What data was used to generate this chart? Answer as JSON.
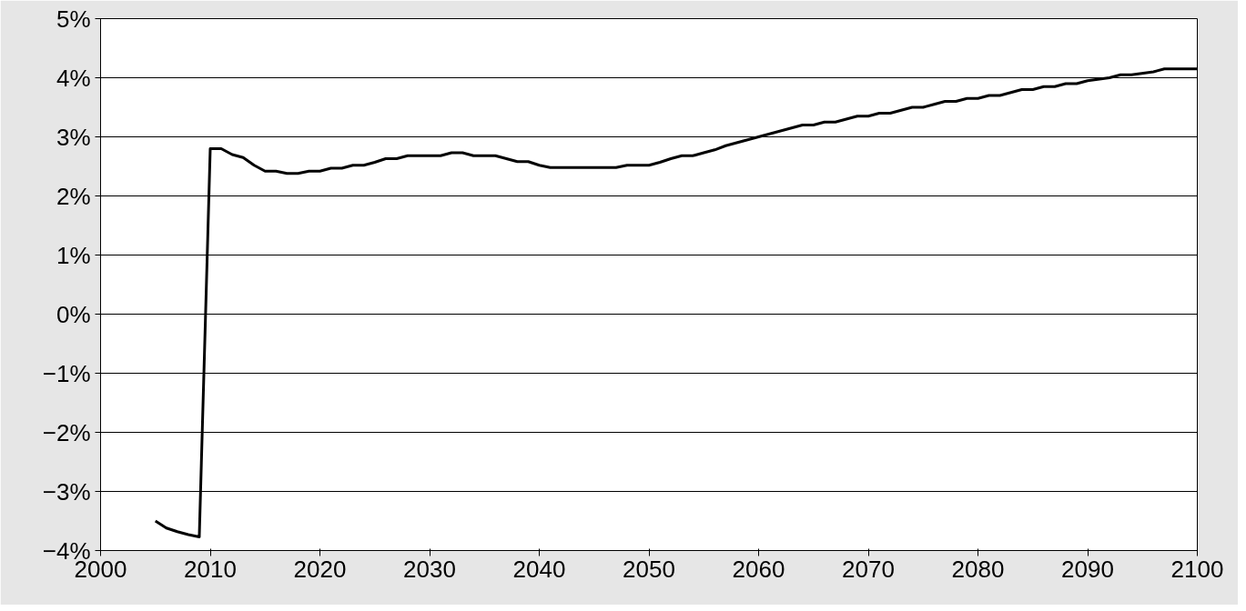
{
  "chart_data": {
    "type": "line",
    "xlim": [
      2000,
      2100
    ],
    "xticks": [
      2000,
      2010,
      2020,
      2030,
      2040,
      2050,
      2060,
      2070,
      2080,
      2090,
      2100
    ],
    "ylim": [
      -4,
      5
    ],
    "yticks": [
      {
        "value": -4,
        "label": "−4%"
      },
      {
        "value": -3,
        "label": "−3%"
      },
      {
        "value": -2,
        "label": "−2%"
      },
      {
        "value": -1,
        "label": "−1%"
      },
      {
        "value": 0,
        "label": "0%"
      },
      {
        "value": 1,
        "label": "1%"
      },
      {
        "value": 2,
        "label": "2%"
      },
      {
        "value": 3,
        "label": "3%"
      },
      {
        "value": 4,
        "label": "4%"
      },
      {
        "value": 5,
        "label": "5%"
      }
    ],
    "grid": "y",
    "marker": "none",
    "line_style": "solid",
    "series": [
      {
        "color": "#000000",
        "x": [
          2005,
          2006,
          2007,
          2008,
          2009,
          2010,
          2011,
          2012,
          2013,
          2014,
          2015,
          2016,
          2017,
          2018,
          2019,
          2020,
          2021,
          2022,
          2023,
          2024,
          2025,
          2026,
          2027,
          2028,
          2031,
          2032,
          2033,
          2034,
          2036,
          2037,
          2038,
          2039,
          2040,
          2041,
          2047,
          2048,
          2050,
          2051,
          2052,
          2053,
          2054,
          2055,
          2056,
          2057,
          2058,
          2059,
          2060,
          2062,
          2063,
          2064,
          2065,
          2066,
          2067,
          2068,
          2069,
          2070,
          2071,
          2072,
          2073,
          2074,
          2075,
          2076,
          2077,
          2078,
          2079,
          2080,
          2081,
          2082,
          2083,
          2084,
          2085,
          2086,
          2087,
          2088,
          2089,
          2090,
          2092,
          2093,
          2094,
          2096,
          2097,
          2100
        ],
        "values": [
          -3.5,
          -3.62,
          -3.68,
          -3.73,
          -3.77,
          2.8,
          2.8,
          2.7,
          2.65,
          2.52,
          2.42,
          2.42,
          2.38,
          2.38,
          2.42,
          2.42,
          2.47,
          2.47,
          2.52,
          2.52,
          2.57,
          2.63,
          2.63,
          2.68,
          2.68,
          2.73,
          2.73,
          2.68,
          2.68,
          2.63,
          2.58,
          2.58,
          2.52,
          2.48,
          2.48,
          2.52,
          2.52,
          2.57,
          2.63,
          2.68,
          2.68,
          2.73,
          2.78,
          2.85,
          2.9,
          2.95,
          3.0,
          3.1,
          3.15,
          3.2,
          3.2,
          3.25,
          3.25,
          3.3,
          3.35,
          3.35,
          3.4,
          3.4,
          3.45,
          3.5,
          3.5,
          3.55,
          3.6,
          3.6,
          3.65,
          3.65,
          3.7,
          3.7,
          3.75,
          3.8,
          3.8,
          3.85,
          3.85,
          3.9,
          3.9,
          3.95,
          4.0,
          4.05,
          4.05,
          4.1,
          4.15,
          4.15
        ]
      }
    ]
  }
}
